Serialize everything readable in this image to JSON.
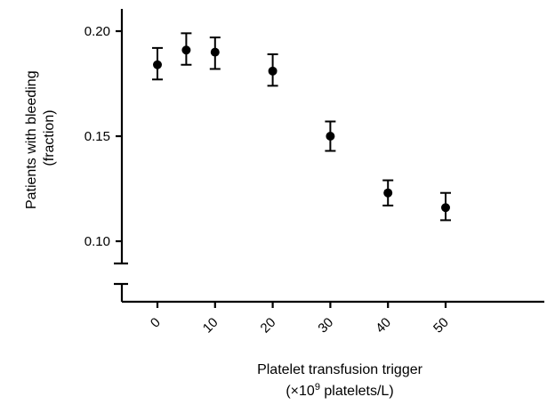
{
  "chart_data": {
    "type": "scatter",
    "title": "",
    "xlabel_line1": "Platelet transfusion trigger",
    "xlabel_line2_prefix": "(×10",
    "xlabel_line2_sup": "9",
    "xlabel_line2_suffix": " platelets/L)",
    "ylabel_line1": "Patients with bleeding",
    "ylabel_line2": "(fraction)",
    "x_ticks": [
      0,
      10,
      20,
      30,
      40,
      50
    ],
    "x_tick_labels": [
      "0",
      "10",
      "20",
      "30",
      "40",
      "50"
    ],
    "y_ticks": [
      0.1,
      0.15,
      0.2
    ],
    "y_tick_labels": [
      "0.10",
      "0.15",
      "0.20"
    ],
    "xlim": [
      -7,
      56
    ],
    "ylim_upper_segment": [
      0.09,
      0.21
    ],
    "y_axis_break": true,
    "grid": false,
    "legend": "none",
    "points": [
      {
        "x": 0,
        "y": 0.184,
        "err_low": 0.177,
        "err_high": 0.192
      },
      {
        "x": 5,
        "y": 0.191,
        "err_low": 0.184,
        "err_high": 0.199
      },
      {
        "x": 10,
        "y": 0.19,
        "err_low": 0.182,
        "err_high": 0.197
      },
      {
        "x": 20,
        "y": 0.181,
        "err_low": 0.174,
        "err_high": 0.189
      },
      {
        "x": 30,
        "y": 0.15,
        "err_low": 0.143,
        "err_high": 0.157
      },
      {
        "x": 40,
        "y": 0.123,
        "err_low": 0.117,
        "err_high": 0.129
      },
      {
        "x": 50,
        "y": 0.116,
        "err_low": 0.11,
        "err_high": 0.123
      }
    ],
    "marker_color": "#000000"
  }
}
